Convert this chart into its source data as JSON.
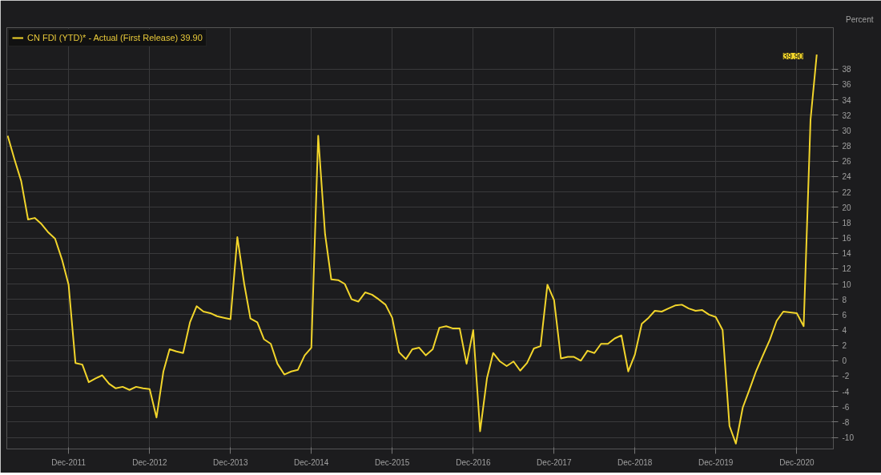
{
  "chart_data": {
    "type": "line",
    "ylabel": "Percent",
    "x": [
      "2011-03",
      "2011-04",
      "2011-05",
      "2011-06",
      "2011-07",
      "2011-08",
      "2011-09",
      "2011-10",
      "2011-11",
      "2011-12",
      "2012-01",
      "2012-02",
      "2012-03",
      "2012-04",
      "2012-05",
      "2012-06",
      "2012-07",
      "2012-08",
      "2012-09",
      "2012-10",
      "2012-11",
      "2012-12",
      "2013-01",
      "2013-02",
      "2013-03",
      "2013-04",
      "2013-05",
      "2013-06",
      "2013-07",
      "2013-08",
      "2013-09",
      "2013-10",
      "2013-11",
      "2013-12",
      "2014-01",
      "2014-02",
      "2014-03",
      "2014-04",
      "2014-05",
      "2014-06",
      "2014-07",
      "2014-08",
      "2014-09",
      "2014-10",
      "2014-11",
      "2014-12",
      "2015-01",
      "2015-02",
      "2015-03",
      "2015-04",
      "2015-05",
      "2015-06",
      "2015-07",
      "2015-08",
      "2015-09",
      "2015-10",
      "2015-11",
      "2015-12",
      "2016-01",
      "2016-02",
      "2016-03",
      "2016-04",
      "2016-05",
      "2016-06",
      "2016-07",
      "2016-08",
      "2016-09",
      "2016-10",
      "2016-11",
      "2016-12",
      "2017-01",
      "2017-02",
      "2017-03",
      "2017-04",
      "2017-05",
      "2017-06",
      "2017-07",
      "2017-08",
      "2017-09",
      "2017-10",
      "2017-11",
      "2017-12",
      "2018-01",
      "2018-02",
      "2018-03",
      "2018-04",
      "2018-05",
      "2018-06",
      "2018-07",
      "2018-08",
      "2018-09",
      "2018-10",
      "2018-11",
      "2018-12",
      "2019-01",
      "2019-02",
      "2019-03",
      "2019-04",
      "2019-05",
      "2019-06",
      "2019-07",
      "2019-08",
      "2019-09",
      "2019-10",
      "2019-11",
      "2019-12",
      "2020-01",
      "2020-02",
      "2020-03",
      "2020-04",
      "2020-05",
      "2020-06",
      "2020-07",
      "2020-08",
      "2020-09",
      "2020-10",
      "2020-11",
      "2020-12",
      "2021-01",
      "2021-02",
      "2021-03"
    ],
    "series": [
      {
        "name": "CN FDI (YTD)* - Actual (First Release) 39.90",
        "color": "#f2d52b",
        "values": [
          29.3,
          26.2,
          23.4,
          18.4,
          18.6,
          17.8,
          16.7,
          15.9,
          13.2,
          9.9,
          -0.3,
          -0.5,
          -2.8,
          -2.3,
          -1.9,
          -3.0,
          -3.6,
          -3.4,
          -3.8,
          -3.4,
          -3.6,
          -3.7,
          -7.4,
          -1.4,
          1.5,
          1.2,
          1.0,
          5.0,
          7.1,
          6.4,
          6.2,
          5.8,
          5.6,
          5.4,
          16.1,
          10.0,
          5.5,
          5.0,
          2.8,
          2.2,
          -0.4,
          -1.8,
          -1.4,
          -1.2,
          0.7,
          1.7,
          29.3,
          16.5,
          10.6,
          10.5,
          10.0,
          8.0,
          7.7,
          8.9,
          8.6,
          8.0,
          7.3,
          5.6,
          1.1,
          0.2,
          1.5,
          1.7,
          0.7,
          1.5,
          4.3,
          4.5,
          4.2,
          4.2,
          -0.4,
          4.0,
          -9.2,
          -2.3,
          1.0,
          -0.1,
          -0.7,
          -0.1,
          -1.3,
          -0.3,
          1.6,
          1.9,
          9.9,
          7.9,
          0.3,
          0.5,
          0.5,
          0.0,
          1.3,
          1.0,
          2.2,
          2.2,
          2.9,
          3.3,
          -1.4,
          0.8,
          4.8,
          5.6,
          6.5,
          6.4,
          6.8,
          7.2,
          7.3,
          6.8,
          6.5,
          6.6,
          6.0,
          5.7,
          4.0,
          -8.5,
          -10.8,
          -6.1,
          -3.8,
          -1.3,
          0.7,
          2.7,
          5.2,
          6.4,
          6.3,
          6.2,
          4.5,
          31.4,
          39.9
        ]
      }
    ],
    "annotations": [
      {
        "text": "39.90",
        "x": "2021-03",
        "y": 39.9
      }
    ],
    "xlim": [
      "2011-02-25",
      "2021-05-15"
    ],
    "xticks": [
      {
        "value": "2011-12",
        "label": "Dec-2011"
      },
      {
        "value": "2012-12",
        "label": "Dec-2012"
      },
      {
        "value": "2013-12",
        "label": "Dec-2013"
      },
      {
        "value": "2014-12",
        "label": "Dec-2014"
      },
      {
        "value": "2015-12",
        "label": "Dec-2015"
      },
      {
        "value": "2016-12",
        "label": "Dec-2016"
      },
      {
        "value": "2017-12",
        "label": "Dec-2017"
      },
      {
        "value": "2018-12",
        "label": "Dec-2018"
      },
      {
        "value": "2019-12",
        "label": "Dec-2019"
      },
      {
        "value": "2020-12",
        "label": "Dec-2020"
      }
    ],
    "ylim": [
      -11.5,
      43.4
    ],
    "yticks": [
      -10,
      -8,
      -6,
      -4,
      -2,
      0,
      2,
      4,
      6,
      8,
      10,
      12,
      14,
      16,
      18,
      20,
      22,
      24,
      26,
      28,
      30,
      32,
      34,
      36,
      38
    ],
    "grid": true,
    "legend": "top left",
    "marker": "none",
    "line_style": "solid"
  }
}
